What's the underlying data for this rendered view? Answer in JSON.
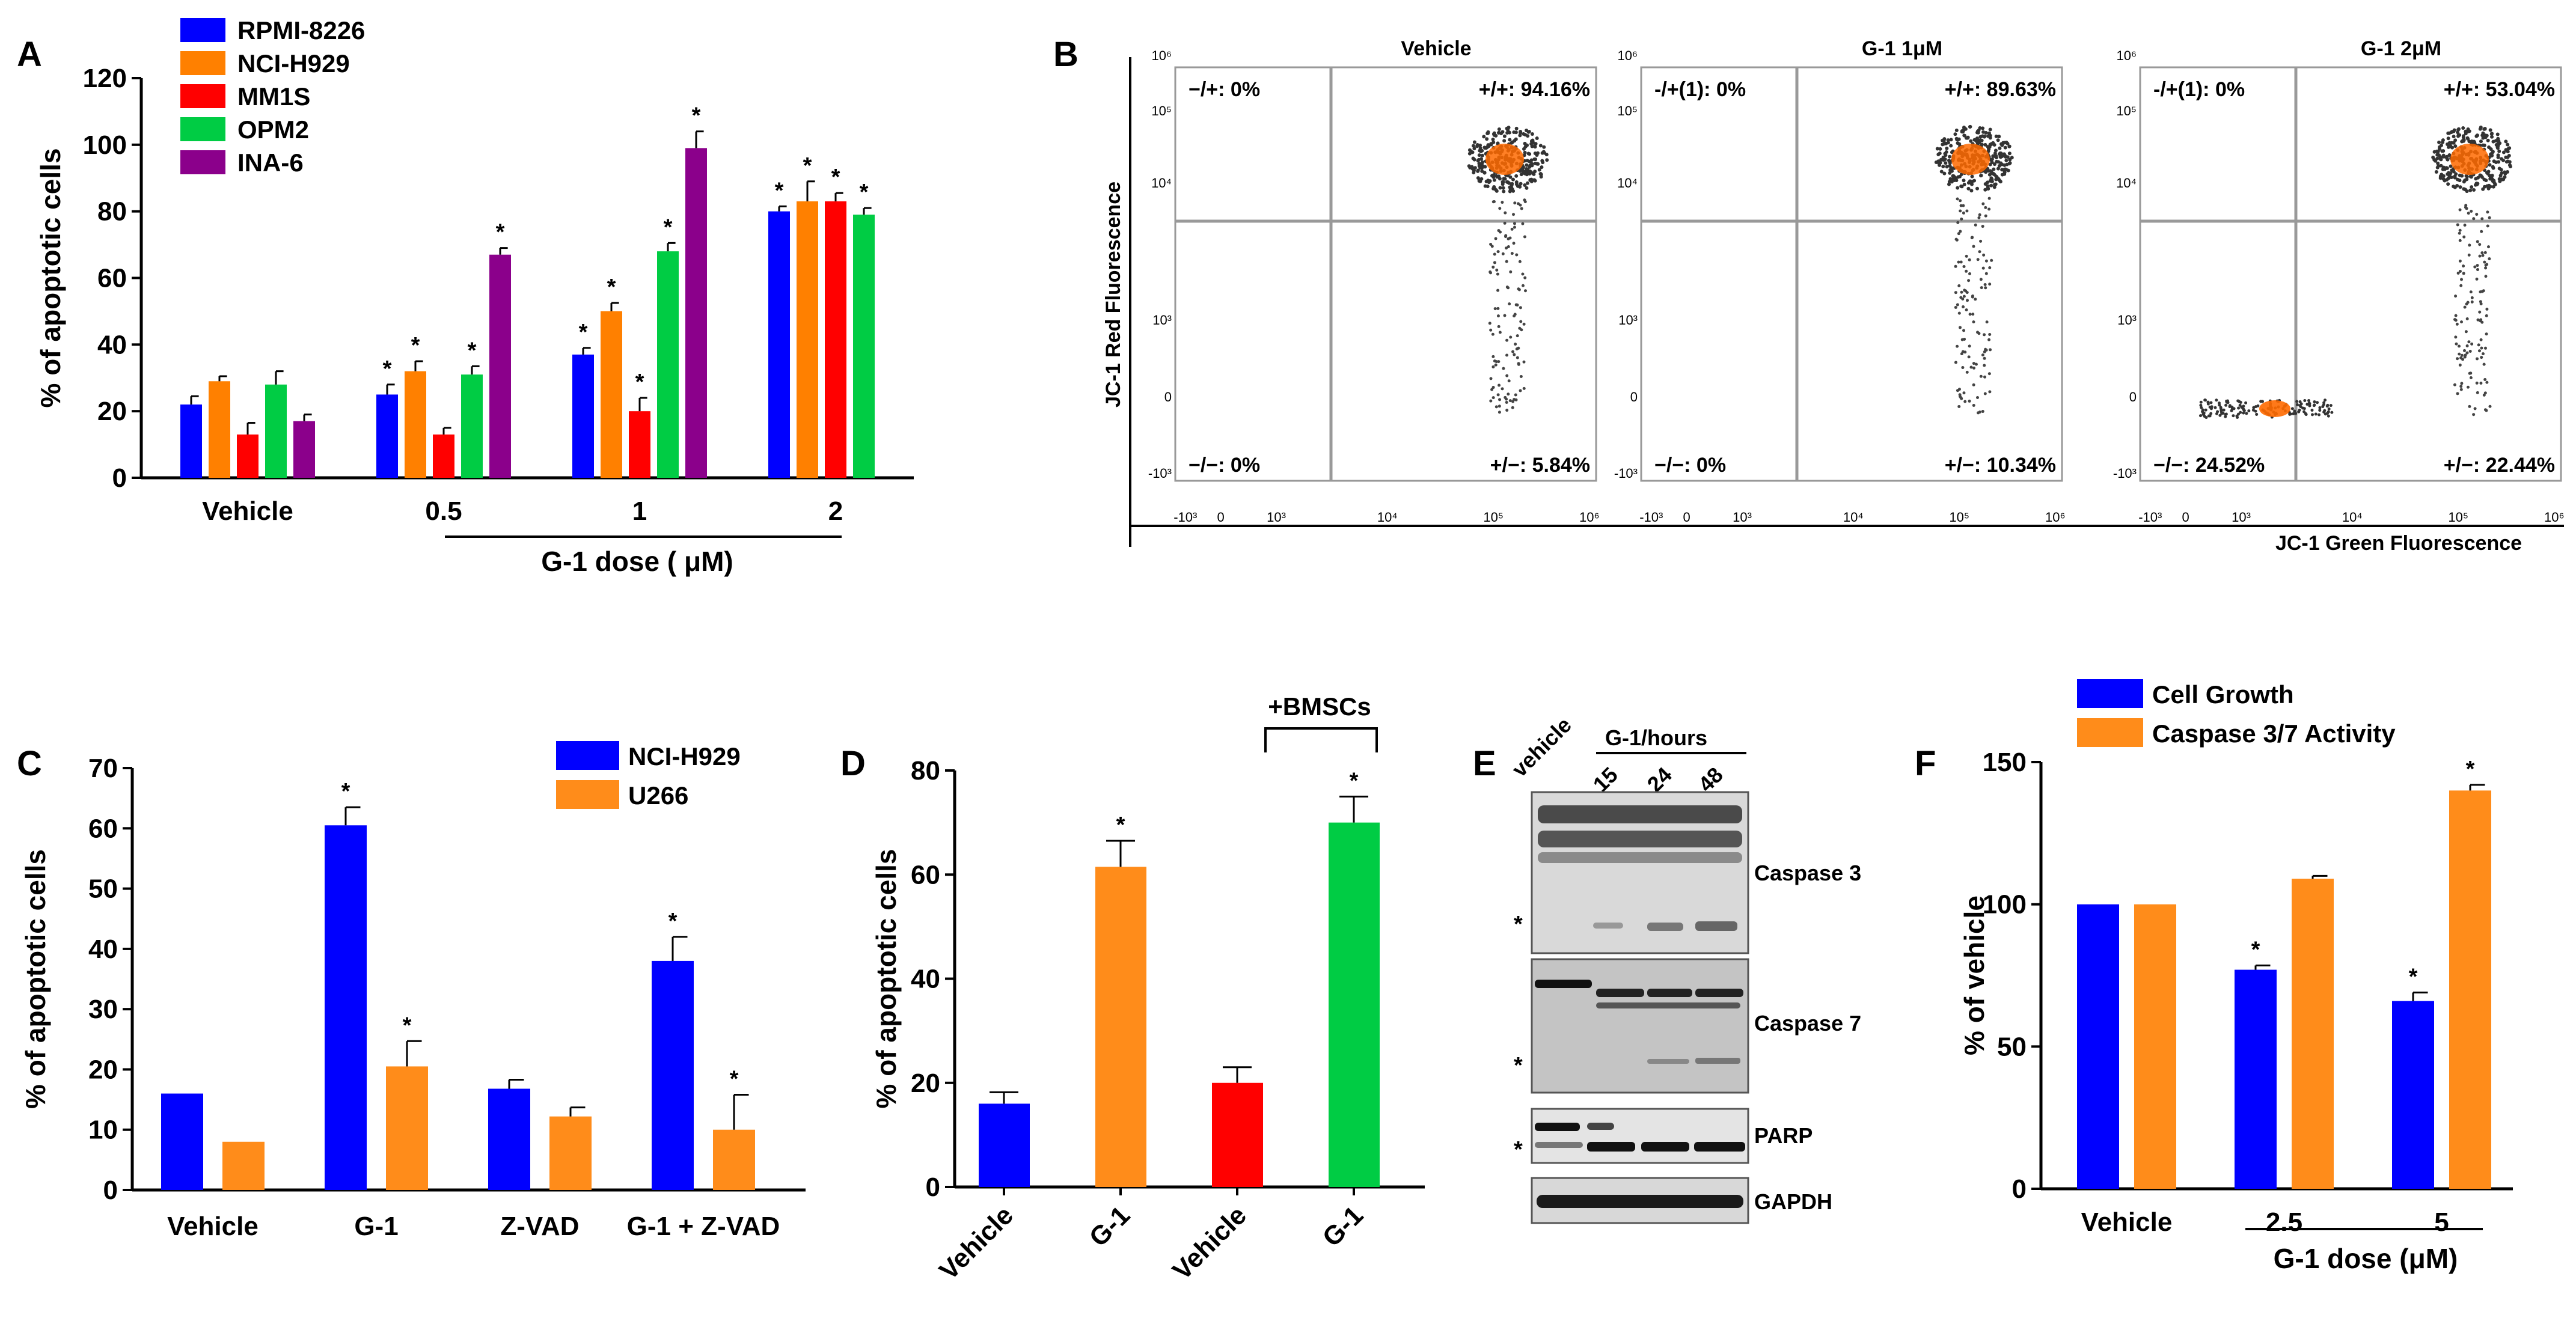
{
  "chart_data": [
    {
      "panel": "A",
      "type": "bar",
      "ylabel": "% of apoptotic cells",
      "ylim": [
        0,
        120
      ],
      "yticks": [
        0,
        20,
        40,
        60,
        80,
        100,
        120
      ],
      "groups": [
        "Vehicle",
        "0.5",
        "1",
        "2"
      ],
      "xlabel": "G-1 dose ( μM)",
      "series": [
        {
          "name": "RPMI-8226",
          "color": "#0000FF",
          "values": [
            22,
            25,
            37,
            80
          ],
          "errors": [
            2.5,
            3,
            2,
            1.5
          ],
          "stars": [
            false,
            true,
            true,
            true
          ]
        },
        {
          "name": "NCI-H929",
          "color": "#FF8000",
          "values": [
            29,
            32,
            50,
            83
          ],
          "errors": [
            1.5,
            3,
            2.5,
            6
          ],
          "stars": [
            false,
            true,
            true,
            true
          ]
        },
        {
          "name": "MM1S",
          "color": "#FF0000",
          "values": [
            13,
            13,
            20,
            83
          ],
          "errors": [
            3.5,
            2,
            4,
            2.5
          ],
          "stars": [
            false,
            false,
            true,
            true
          ]
        },
        {
          "name": "OPM2",
          "color": "#00CC44",
          "values": [
            28,
            31,
            68,
            79
          ],
          "errors": [
            4,
            2.5,
            2.5,
            2
          ],
          "stars": [
            false,
            true,
            true,
            true
          ]
        },
        {
          "name": "INA-6",
          "color": "#8B008B",
          "values": [
            17,
            67,
            99,
            null
          ],
          "errors": [
            2,
            2,
            5,
            null
          ],
          "stars": [
            false,
            true,
            true,
            false
          ]
        }
      ]
    },
    {
      "panel": "B",
      "type": "scatter",
      "ylabel": "JC-1 Red Fluorescence",
      "xlabel": "JC-1 Green Fluorescence",
      "yticks": [
        "10⁶",
        "10⁵",
        "10⁴",
        "10³",
        "0",
        "-10³"
      ],
      "xticks": [
        "-10³",
        "0",
        "10³",
        "10⁴",
        "10⁵",
        "10⁶"
      ],
      "plots": [
        {
          "title": "Vehicle",
          "q_ul": "−/+: 0%",
          "q_ur": "+/+: 94.16%",
          "q_ll": "−/−: 0%",
          "q_lr": "+/−: 5.84%"
        },
        {
          "title": "G-1 1μM",
          "q_ul": "-/+(1): 0%",
          "q_ur": "+/+: 89.63%",
          "q_ll": "−/−: 0%",
          "q_lr": "+/−: 10.34%"
        },
        {
          "title": "G-1 2μM",
          "q_ul": "-/+(1): 0%",
          "q_ur": "+/+: 53.04%",
          "q_ll": "−/−: 24.52%",
          "q_lr": "+/−: 22.44%"
        }
      ]
    },
    {
      "panel": "C",
      "type": "bar",
      "ylabel": "% of apoptotic cells",
      "ylim": [
        0,
        70
      ],
      "yticks": [
        0,
        10,
        20,
        30,
        40,
        50,
        60,
        70
      ],
      "groups": [
        "Vehicle",
        "G-1",
        "Z-VAD",
        "G-1 + Z-VAD"
      ],
      "series": [
        {
          "name": "NCI-H929",
          "color": "#0000FF",
          "values": [
            16,
            60.5,
            16.8,
            38
          ],
          "errors": [
            0,
            3,
            1.5,
            4
          ],
          "stars": [
            false,
            true,
            false,
            true
          ]
        },
        {
          "name": "U266",
          "color": "#FF8C1A",
          "values": [
            8,
            20.5,
            12.2,
            10
          ],
          "errors": [
            0,
            4.2,
            1.5,
            5.8
          ],
          "stars": [
            false,
            true,
            false,
            true
          ]
        }
      ]
    },
    {
      "panel": "D",
      "type": "bar",
      "ylabel": "% of apoptotic cells",
      "ylim": [
        0,
        80
      ],
      "yticks": [
        0,
        20,
        40,
        60,
        80
      ],
      "categories": [
        "Vehicle",
        "G-1",
        "Vehicle",
        "G-1"
      ],
      "colors": [
        "#0000FF",
        "#FF8C1A",
        "#FF0000",
        "#00CC44"
      ],
      "values": [
        16,
        61.5,
        20,
        70
      ],
      "errors": [
        2.2,
        5,
        3,
        5
      ],
      "stars": [
        false,
        true,
        false,
        true
      ],
      "annotation": "+BMSCs"
    },
    {
      "panel": "F",
      "type": "bar",
      "ylabel": "% of vehicle",
      "ylim": [
        0,
        150
      ],
      "yticks": [
        0,
        50,
        100,
        150
      ],
      "groups": [
        "Vehicle",
        "2.5",
        "5"
      ],
      "xlabel": "G-1 dose (μM)",
      "series": [
        {
          "name": "Cell Growth",
          "color": "#0000FF",
          "values": [
            100,
            77,
            66
          ],
          "errors": [
            0,
            1.5,
            3
          ],
          "stars": [
            false,
            true,
            true
          ]
        },
        {
          "name": "Caspase 3/7 Activity",
          "color": "#FF8C1A",
          "values": [
            100,
            109,
            140
          ],
          "errors": [
            0,
            1,
            2
          ],
          "stars": [
            false,
            false,
            true
          ]
        }
      ]
    }
  ],
  "panel_labels": {
    "A": "A",
    "B": "B",
    "C": "C",
    "D": "D",
    "E": "E",
    "F": "F"
  },
  "western_blot": {
    "lanes": [
      "vehicle",
      "15",
      "24",
      "48"
    ],
    "header": "G-1/hours",
    "blots": [
      "Caspase 3",
      "Caspase 7",
      "PARP",
      "GAPDH"
    ],
    "star": "*"
  },
  "star_symbol": "*"
}
